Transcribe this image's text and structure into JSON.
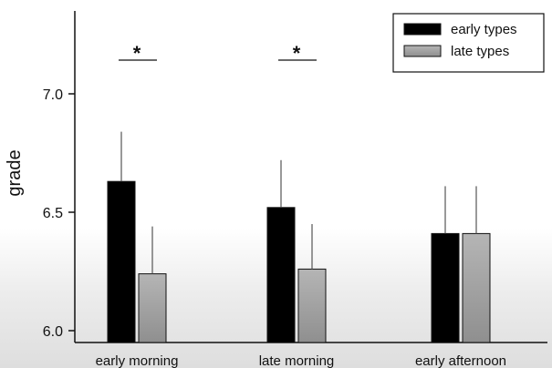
{
  "chart_data": {
    "type": "bar",
    "categories": [
      "early morning",
      "late morning",
      "early afternoon"
    ],
    "series": [
      {
        "name": "early types",
        "values": [
          6.63,
          6.52,
          6.41
        ],
        "errors": [
          0.21,
          0.2,
          0.2
        ],
        "color": "#000000"
      },
      {
        "name": "late types",
        "values": [
          6.24,
          6.26,
          6.41
        ],
        "errors": [
          0.2,
          0.19,
          0.2
        ],
        "color": "#b5b5b5"
      }
    ],
    "significance": [
      "*",
      "*",
      ""
    ],
    "ylabel": "grade",
    "xlabel": "",
    "ylim": [
      5.95,
      7.35
    ],
    "yticks": [
      "6.0",
      "6.5",
      "7.0"
    ],
    "legend_position": "top-right",
    "grid": false
  }
}
